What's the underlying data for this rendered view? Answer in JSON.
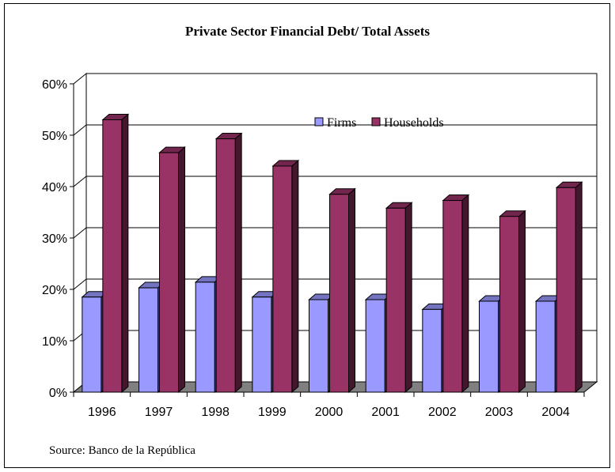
{
  "chart_data": {
    "type": "bar",
    "title": "Private Sector Financial Debt/ Total Assets",
    "categories": [
      "1996",
      "1997",
      "1998",
      "1999",
      "2000",
      "2001",
      "2002",
      "2003",
      "2004"
    ],
    "series": [
      {
        "name": "Firms",
        "color": "#9999ff",
        "values": [
          18.5,
          20.3,
          21.4,
          18.5,
          18.0,
          18.0,
          16.1,
          17.7,
          17.7
        ]
      },
      {
        "name": "Households",
        "color": "#993366",
        "values": [
          53.0,
          46.6,
          49.3,
          44.0,
          38.5,
          35.8,
          37.3,
          34.2,
          39.8
        ]
      }
    ],
    "y_ticks": [
      "0%",
      "10%",
      "20%",
      "30%",
      "40%",
      "50%",
      "60%"
    ],
    "ylim": [
      0,
      60
    ],
    "xlabel": "",
    "ylabel": "",
    "grid": true,
    "legend_position": "top-right",
    "style": "3d-clustered-column"
  },
  "source": "Source: Banco de la República"
}
